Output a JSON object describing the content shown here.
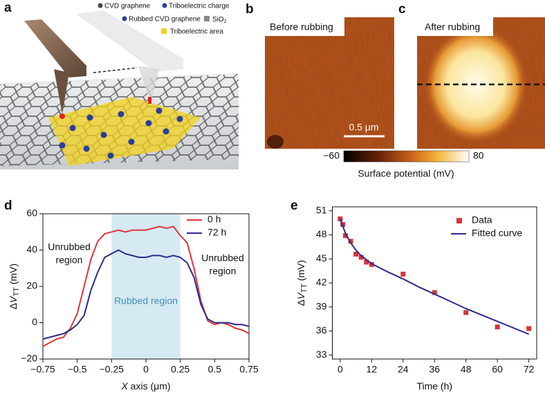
{
  "panels": {
    "a": {
      "label": "a",
      "legend": {
        "cvd": "CVD graphene",
        "charge": "Triboelectric charge",
        "rubbed": "Rubbed CVD graphene",
        "sio2": "SiO",
        "sio2_sub": "2",
        "area": "Triboelectric area"
      }
    },
    "b": {
      "label": "b",
      "caption": "Before rubbing",
      "scale_bar": "0.5 μm"
    },
    "c": {
      "label": "c",
      "caption": "After rubbing"
    },
    "colorbar": {
      "lim": [
        -60,
        80
      ],
      "ticks": [
        {
          "value": -60,
          "label": "−60"
        },
        80
      ],
      "label": "Surface potential (mV)"
    },
    "d": {
      "label": "d"
    },
    "e": {
      "label": "e"
    }
  },
  "chart_data": [
    {
      "type": "line",
      "x_label": {
        "var": "X",
        "rest": " axis (μm)"
      },
      "y_label": {
        "prefix": "Δ",
        "var": "V",
        "sub": "TT",
        "unit": " (mV)"
      },
      "xlim": [
        -0.75,
        0.75
      ],
      "xticks": [
        {
          "value": -0.75,
          "label": "−0.75"
        },
        {
          "value": -0.5,
          "label": "−0.5"
        },
        {
          "value": -0.25,
          "label": "−0.25"
        },
        0,
        0.25,
        0.5,
        0.75
      ],
      "ylim": [
        -20,
        60
      ],
      "yticks": [
        {
          "value": -20,
          "label": "−20"
        },
        0,
        20,
        40,
        60
      ],
      "shade": {
        "range": [
          -0.25,
          0.25
        ],
        "color": "#d6eaf3",
        "label": "Rubbed region"
      },
      "annotations": [
        [
          "Unrubbed",
          "region"
        ],
        [
          "Unrubbed",
          "region"
        ]
      ],
      "x": [
        -0.75,
        -0.7,
        -0.65,
        -0.6,
        -0.55,
        -0.5,
        -0.45,
        -0.4,
        -0.35,
        -0.3,
        -0.25,
        -0.2,
        -0.15,
        -0.1,
        -0.05,
        0,
        0.05,
        0.1,
        0.15,
        0.2,
        0.25,
        0.3,
        0.35,
        0.4,
        0.45,
        0.5,
        0.55,
        0.6,
        0.65,
        0.7,
        0.75
      ],
      "series": [
        {
          "name": "0 h",
          "color": "#e0343a",
          "values": [
            -13,
            -11,
            -9,
            -8,
            -3,
            5,
            20,
            35,
            45,
            49,
            50,
            51,
            50,
            51,
            51,
            51,
            52,
            53,
            52,
            53,
            48,
            44,
            30,
            12,
            1,
            -1,
            0,
            -1,
            -3,
            -4,
            -6
          ]
        },
        {
          "name": "72 h",
          "color": "#2c2a8a",
          "values": [
            -9,
            -8,
            -7,
            -6,
            -4,
            -1,
            4,
            18,
            28,
            36,
            38,
            40,
            38,
            37,
            36,
            36,
            37,
            37,
            36,
            37,
            36,
            33,
            25,
            10,
            2,
            0,
            0,
            0,
            -1,
            -1,
            -2
          ]
        }
      ]
    },
    {
      "type": "scatter",
      "x_label": {
        "var": "",
        "rest": "Time (h)"
      },
      "y_label": {
        "prefix": "Δ",
        "var": "V",
        "sub": "TT",
        "unit": " (mV)"
      },
      "xlim": [
        -3,
        75
      ],
      "xticks": [
        0,
        12,
        24,
        36,
        48,
        60,
        72
      ],
      "ylim": [
        32.5,
        51.5
      ],
      "yticks": [
        33,
        36,
        39,
        42,
        45,
        48,
        51
      ],
      "series": [
        {
          "name": "Data",
          "type": "scatter",
          "color": "#d8343c",
          "x": [
            0,
            1,
            2,
            4,
            6,
            8,
            10,
            12,
            24,
            36,
            48,
            60,
            72
          ],
          "values": [
            50,
            49.3,
            47.9,
            47.2,
            45.6,
            45.2,
            44.6,
            44.3,
            43.1,
            40.8,
            38.3,
            36.5,
            36.3
          ]
        },
        {
          "name": "Fitted curve",
          "type": "line",
          "color": "#2c2a8a",
          "x": [
            0,
            2,
            4,
            6,
            8,
            12,
            18,
            24,
            30,
            36,
            42,
            48,
            54,
            60,
            66,
            72
          ],
          "values": [
            50,
            48.2,
            47,
            46.1,
            45.4,
            44.4,
            43.4,
            42.5,
            41.5,
            40.6,
            39.7,
            38.8,
            38,
            37.2,
            36.4,
            35.6
          ]
        }
      ]
    }
  ]
}
